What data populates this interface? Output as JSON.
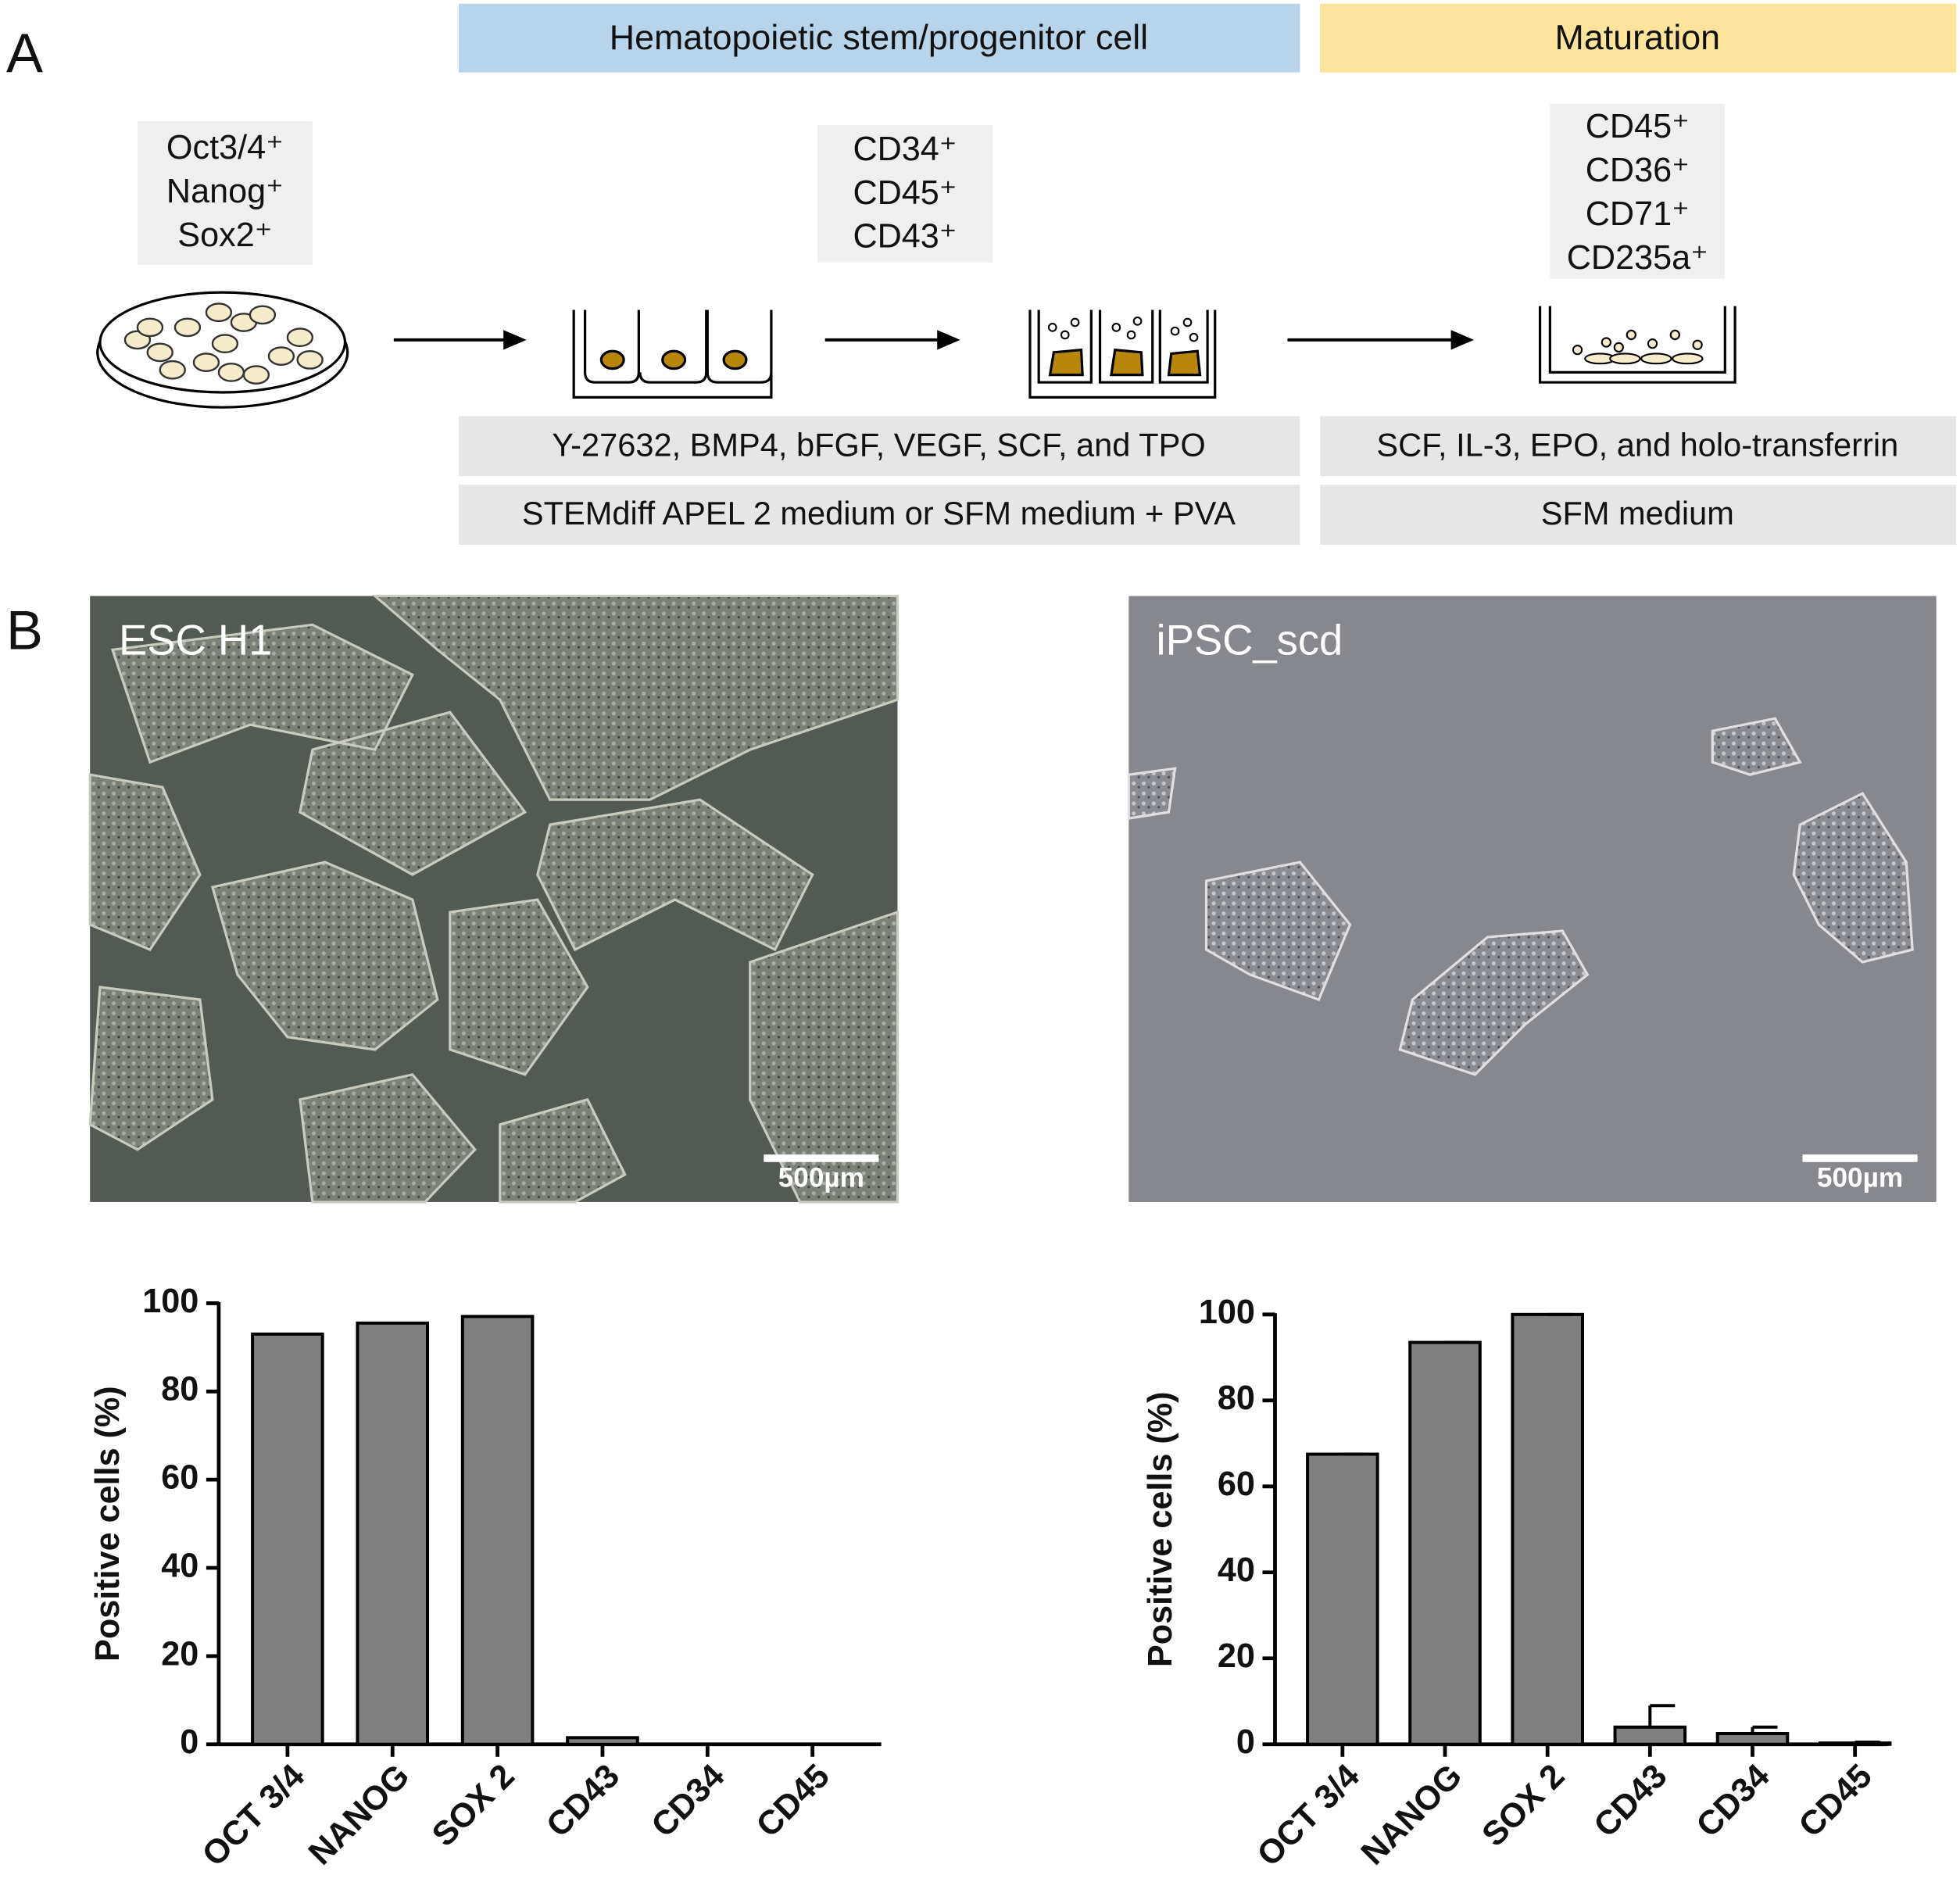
{
  "panels": {
    "a": "A",
    "b": "B"
  },
  "stages": [
    "Hematopoietic stem/progenitor cell",
    "Maturation"
  ],
  "markers": [
    [
      "Oct3/4⁺",
      "Nanog⁺",
      "Sox2⁺"
    ],
    [
      "CD34⁺",
      "CD45⁺",
      "CD43⁺"
    ],
    [
      "CD45⁺",
      "CD36⁺",
      "CD71⁺",
      "CD235a⁺"
    ]
  ],
  "conditions": [
    [
      "Y-27632, BMP4, bFGF, VEGF, SCF, and TPO",
      "STEMdiff APEL 2 medium or SFM medium + PVA"
    ],
    [
      "SCF, IL-3, EPO, and holo-transferrin",
      "SFM medium"
    ]
  ],
  "images": [
    {
      "label": "ESC H1",
      "scale_bar": "500µm"
    },
    {
      "label": "iPSC_scd",
      "scale_bar": "500µm"
    }
  ],
  "chart_data": [
    {
      "type": "bar",
      "y_label": "Positive cells (%)",
      "categories": [
        "OCT 3/4",
        "NANOG",
        "SOX 2",
        "CD43",
        "CD34",
        "CD45"
      ],
      "values": [
        93,
        95.5,
        97,
        1.5,
        0,
        0
      ],
      "color": "#808080",
      "ylim": [
        0,
        100
      ],
      "yticks": [
        0,
        20,
        40,
        60,
        80,
        100
      ]
    },
    {
      "type": "bar",
      "y_label": "Positive cells (%)",
      "categories": [
        "OCT 3/4",
        "NANOG",
        "SOX 2",
        "CD43",
        "CD34",
        "CD45"
      ],
      "values": [
        67.5,
        93.5,
        100,
        4,
        2.5,
        0.3
      ],
      "errors": [
        0,
        0,
        0,
        5,
        1.5,
        0.2
      ],
      "color": "#808080",
      "ylim": [
        0,
        100
      ],
      "yticks": [
        0,
        20,
        40,
        60,
        80,
        100
      ]
    }
  ]
}
